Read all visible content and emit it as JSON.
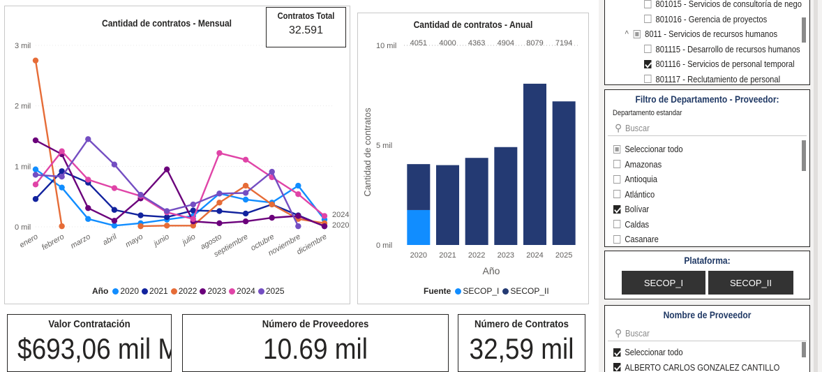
{
  "monthly_chart": {
    "title": "Cantidad de contratos - Mensual",
    "months": [
      "enero",
      "febrero",
      "marzo",
      "abril",
      "mayo",
      "junio",
      "julio",
      "agosto",
      "septiembre",
      "octubre",
      "noviembre",
      "diciembre"
    ],
    "y_ticks": [
      "3 mil",
      "2 mil",
      "1 mil",
      "0 mil"
    ],
    "legend_label": "Año",
    "end_labels": [
      "2024",
      "2020"
    ],
    "chart_data": {
      "type": "line",
      "x": [
        "enero",
        "febrero",
        "marzo",
        "abril",
        "mayo",
        "junio",
        "julio",
        "agosto",
        "septiembre",
        "octubre",
        "noviembre",
        "diciembre"
      ],
      "ylim": [
        0,
        3000
      ],
      "series": [
        {
          "name": "2020",
          "color": "#118dff",
          "values": [
            950,
            650,
            130,
            20,
            60,
            120,
            180,
            550,
            450,
            400,
            680,
            120
          ]
        },
        {
          "name": "2021",
          "color": "#12239e",
          "values": [
            460,
            920,
            730,
            280,
            190,
            160,
            270,
            260,
            220,
            370,
            190,
            10
          ]
        },
        {
          "name": "2022",
          "color": "#e66c37",
          "values": [
            2750,
            10,
            null,
            null,
            10,
            20,
            20,
            400,
            680,
            370,
            130,
            60
          ]
        },
        {
          "name": "2023",
          "color": "#6b007b",
          "values": [
            1430,
            1200,
            310,
            100,
            470,
            950,
            90,
            60,
            90,
            150,
            180,
            10
          ]
        },
        {
          "name": "2024",
          "color": "#e044a7",
          "values": [
            700,
            1250,
            780,
            640,
            510,
            240,
            130,
            1220,
            1110,
            820,
            540,
            180
          ]
        },
        {
          "name": "2025",
          "color": "#744ec2",
          "values": [
            860,
            830,
            1450,
            1030,
            530,
            260,
            370,
            550,
            560,
            910,
            10,
            null
          ]
        }
      ]
    }
  },
  "total_card": {
    "title": "Contratos Total",
    "value": "32.591"
  },
  "annual_chart": {
    "title": "Cantidad de contratos - Anual",
    "y_axis_title": "Cantidad de contratos",
    "x_axis_title": "Año",
    "y_ticks": [
      "10 mil",
      "5 mil",
      "0 mil"
    ],
    "legend_label": "Fuente",
    "chart_data": {
      "type": "bar",
      "categories": [
        "2020",
        "2021",
        "2022",
        "2023",
        "2024",
        "2025"
      ],
      "totals": [
        4051,
        4000,
        4363,
        4904,
        8079,
        7194
      ],
      "ylim": [
        0,
        10000
      ],
      "series": [
        {
          "name": "SECOP_I",
          "color": "#118dff",
          "values": [
            1750,
            0,
            0,
            0,
            0,
            0
          ]
        },
        {
          "name": "SECOP_II",
          "color": "#243a73",
          "values": [
            2301,
            4000,
            4363,
            4904,
            8079,
            7194
          ]
        }
      ]
    }
  },
  "kpis": {
    "valor": {
      "title": "Valor Contratación",
      "value": "$693,06 mil M"
    },
    "proveedores": {
      "title": "Número de Proveedores",
      "value": "10.69 mil"
    },
    "contratos": {
      "title": "Número de Contratos",
      "value": "32,59 mil"
    }
  },
  "tree_slicer": {
    "items": [
      {
        "label": "801015 - Servicios de consultoría de nego",
        "state": "off",
        "indent": 2
      },
      {
        "label": "801016 - Gerencia de proyectos",
        "state": "off",
        "indent": 2
      },
      {
        "label": "8011 - Servicios de recursos humanos",
        "state": "part",
        "indent": 1
      },
      {
        "label": "801115 - Desarrollo de recursos humanos",
        "state": "off",
        "indent": 2
      },
      {
        "label": "801116 - Servicios de personal temporal",
        "state": "on",
        "indent": 2
      },
      {
        "label": "801117 - Reclutamiento de personal",
        "state": "off",
        "indent": 2
      }
    ]
  },
  "dept_slicer": {
    "title": "Filtro de Departamento - Proveedor:",
    "field_label": "Departamento estandar",
    "search_placeholder": "Buscar",
    "items": [
      {
        "label": "Seleccionar todo",
        "state": "part"
      },
      {
        "label": "Amazonas",
        "state": "off"
      },
      {
        "label": "Antioquia",
        "state": "off"
      },
      {
        "label": "Atlántico",
        "state": "off"
      },
      {
        "label": "Bolívar",
        "state": "on"
      },
      {
        "label": "Caldas",
        "state": "off"
      },
      {
        "label": "Casanare",
        "state": "off"
      }
    ]
  },
  "platform_slicer": {
    "title": "Plataforma:",
    "buttons": [
      "SECOP_I",
      "SECOP_II"
    ]
  },
  "provider_slicer": {
    "title": "Nombre de Proveedor",
    "search_placeholder": "Buscar",
    "items": [
      {
        "label": "Seleccionar todo",
        "state": "on"
      },
      {
        "label": "ALBERTO CARLOS GONZALEZ CANTILLO",
        "state": "on"
      }
    ]
  }
}
